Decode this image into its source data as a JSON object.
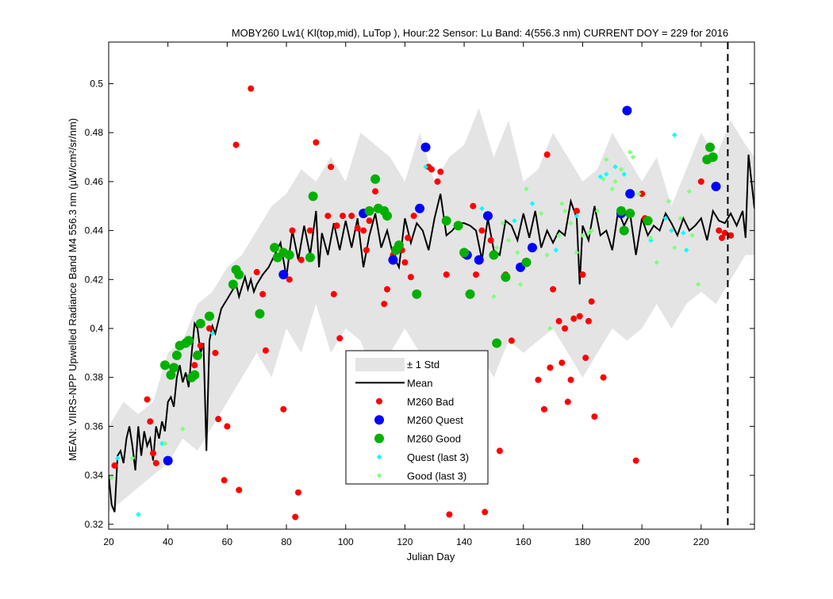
{
  "chart_data": {
    "type": "scatter",
    "title": "MOBY260   Lw1( Kl(top,mid), LuTop ),   Hour:22 Sensor: Lu Band: 4(556.3 nm)   CURRENT DOY = 229 for 2016",
    "xlabel": "Julian Day",
    "ylabel": "MEAN: VIIRS-NPP Upwelled Radiance Band M4 556.3 nm (μW/cm²/sr/nm)",
    "xlim": [
      20,
      238
    ],
    "ylim": [
      0.318,
      0.517
    ],
    "x_ticks": [
      20,
      40,
      60,
      80,
      100,
      120,
      140,
      160,
      180,
      200,
      220
    ],
    "y_ticks": [
      0.32,
      0.34,
      0.36,
      0.38,
      0.4,
      0.42,
      0.44,
      0.46,
      0.48,
      0.5
    ],
    "y_tick_labels": [
      "0.32",
      "0.34",
      "0.36",
      "0.38",
      "0.4",
      "0.42",
      "0.44",
      "0.46",
      "0.48",
      "0.5"
    ],
    "grid": false,
    "legend_position": "center-bottom",
    "current_doy": 229,
    "colors": {
      "std_band": "#e4e4e4",
      "mean": "#000000",
      "bad": "#ff0000",
      "quest": "#0000ff",
      "good": "#00b000",
      "quest_last3": "#00ffff",
      "good_last3": "#80ff80"
    },
    "legend": [
      {
        "key": "std",
        "label": "± 1 Std"
      },
      {
        "key": "mean",
        "label": "Mean"
      },
      {
        "key": "bad",
        "label": "M260 Bad"
      },
      {
        "key": "quest",
        "label": "M260 Quest"
      },
      {
        "key": "good",
        "label": "M260 Good"
      },
      {
        "key": "quest_last3",
        "label": "Quest (last 3)"
      },
      {
        "key": "good_last3",
        "label": "Good (last 3)"
      }
    ],
    "mean_series": {
      "x": [
        20,
        21,
        22,
        23,
        24,
        25,
        26,
        27,
        28,
        29,
        30,
        31,
        32,
        33,
        34,
        35,
        36,
        37,
        38,
        39,
        40,
        41,
        42,
        43,
        44,
        45,
        46,
        47,
        48,
        49,
        50,
        51,
        52,
        53,
        54,
        55,
        56,
        57,
        58,
        59,
        60,
        61,
        62,
        63,
        64,
        65,
        66,
        67,
        68,
        69,
        70,
        72,
        74,
        76,
        78,
        80,
        82,
        84,
        86,
        88,
        90,
        91,
        92,
        94,
        96,
        98,
        100,
        102,
        104,
        106,
        108,
        110,
        112,
        114,
        116,
        118,
        120,
        122,
        124,
        126,
        128,
        130,
        132,
        134,
        136,
        138,
        140,
        142,
        144,
        146,
        148,
        150,
        152,
        154,
        156,
        158,
        160,
        162,
        164,
        166,
        168,
        170,
        172,
        174,
        176,
        178,
        179,
        180,
        182,
        184,
        186,
        188,
        190,
        192,
        194,
        196,
        198,
        200,
        202,
        204,
        206,
        208,
        210,
        212,
        214,
        216,
        218,
        220,
        222,
        224,
        226,
        228,
        230,
        232,
        234,
        235,
        236,
        238
      ],
      "y": [
        0.34,
        0.328,
        0.325,
        0.348,
        0.35,
        0.345,
        0.355,
        0.36,
        0.352,
        0.342,
        0.36,
        0.348,
        0.358,
        0.352,
        0.355,
        0.346,
        0.36,
        0.355,
        0.362,
        0.358,
        0.37,
        0.372,
        0.368,
        0.38,
        0.385,
        0.378,
        0.382,
        0.376,
        0.39,
        0.402,
        0.4,
        0.39,
        0.394,
        0.35,
        0.395,
        0.401,
        0.398,
        0.403,
        0.408,
        0.41,
        0.412,
        0.414,
        0.416,
        0.418,
        0.413,
        0.417,
        0.421,
        0.416,
        0.42,
        0.415,
        0.418,
        0.422,
        0.425,
        0.43,
        0.435,
        0.421,
        0.44,
        0.428,
        0.442,
        0.43,
        0.448,
        0.425,
        0.439,
        0.43,
        0.443,
        0.432,
        0.444,
        0.433,
        0.445,
        0.425,
        0.438,
        0.447,
        0.433,
        0.44,
        0.43,
        0.425,
        0.445,
        0.435,
        0.443,
        0.44,
        0.432,
        0.445,
        0.455,
        0.438,
        0.44,
        0.443,
        0.443,
        0.442,
        0.44,
        0.428,
        0.445,
        0.432,
        0.43,
        0.444,
        0.442,
        0.436,
        0.447,
        0.437,
        0.448,
        0.433,
        0.44,
        0.435,
        0.44,
        0.438,
        0.452,
        0.445,
        0.418,
        0.442,
        0.436,
        0.45,
        0.438,
        0.44,
        0.432,
        0.448,
        0.442,
        0.447,
        0.43,
        0.445,
        0.438,
        0.442,
        0.44,
        0.447,
        0.443,
        0.438,
        0.445,
        0.44,
        0.442,
        0.445,
        0.436,
        0.448,
        0.444,
        0.443,
        0.447,
        0.442,
        0.448,
        0.437,
        0.471,
        0.449
      ],
      "y_std": [
        0.012,
        0.012,
        0.012,
        0.012,
        0.012,
        0.012,
        0.012,
        0.012,
        0.012,
        0.012,
        0.012,
        0.012,
        0.012,
        0.012,
        0.012,
        0.012,
        0.012,
        0.012,
        0.012,
        0.012,
        0.012,
        0.012,
        0.012,
        0.012,
        0.012,
        0.012,
        0.012,
        0.012,
        0.012,
        0.012,
        0.012,
        0.012,
        0.012,
        0.012,
        0.012,
        0.012,
        0.012,
        0.012,
        0.012,
        0.012,
        0.012,
        0.012,
        0.012,
        0.012,
        0.012,
        0.012,
        0.012,
        0.012,
        0.012,
        0.012,
        0.012,
        0.012,
        0.012,
        0.012,
        0.012,
        0.012,
        0.012,
        0.012,
        0.012,
        0.012,
        0.012,
        0.012,
        0.012,
        0.012,
        0.012,
        0.012,
        0.012,
        0.012,
        0.012,
        0.012,
        0.012,
        0.012,
        0.012,
        0.012,
        0.012,
        0.012,
        0.012,
        0.012,
        0.012,
        0.012,
        0.012,
        0.012,
        0.012,
        0.012,
        0.012,
        0.012,
        0.012,
        0.012,
        0.012,
        0.012,
        0.012,
        0.012,
        0.012,
        0.012,
        0.012,
        0.012,
        0.012,
        0.012,
        0.012,
        0.012,
        0.012,
        0.012,
        0.012,
        0.012,
        0.012,
        0.012,
        0.012,
        0.012,
        0.012,
        0.012,
        0.012,
        0.012,
        0.012,
        0.012,
        0.012,
        0.012,
        0.012,
        0.012,
        0.012,
        0.012,
        0.012,
        0.012,
        0.012,
        0.012,
        0.012,
        0.012,
        0.012,
        0.012,
        0.012,
        0.012,
        0.012,
        0.012,
        0.012,
        0.012,
        0.012,
        0.012,
        0.012,
        0.012
      ]
    },
    "std_band": {
      "x": [
        20,
        25,
        30,
        35,
        40,
        45,
        50,
        55,
        60,
        65,
        70,
        75,
        80,
        85,
        90,
        95,
        100,
        105,
        110,
        115,
        120,
        125,
        130,
        135,
        140,
        145,
        150,
        155,
        160,
        165,
        170,
        175,
        180,
        185,
        190,
        195,
        200,
        205,
        210,
        215,
        220,
        225,
        230,
        235,
        238
      ],
      "upper": [
        0.36,
        0.37,
        0.365,
        0.37,
        0.39,
        0.395,
        0.41,
        0.415,
        0.425,
        0.43,
        0.44,
        0.45,
        0.455,
        0.465,
        0.46,
        0.47,
        0.46,
        0.48,
        0.475,
        0.47,
        0.46,
        0.48,
        0.46,
        0.47,
        0.475,
        0.49,
        0.47,
        0.485,
        0.46,
        0.465,
        0.48,
        0.47,
        0.46,
        0.465,
        0.48,
        0.47,
        0.46,
        0.47,
        0.45,
        0.465,
        0.48,
        0.47,
        0.485,
        0.475,
        0.47
      ],
      "lower": [
        0.325,
        0.33,
        0.335,
        0.34,
        0.345,
        0.355,
        0.35,
        0.36,
        0.37,
        0.38,
        0.39,
        0.38,
        0.4,
        0.39,
        0.41,
        0.39,
        0.4,
        0.395,
        0.38,
        0.39,
        0.4,
        0.39,
        0.38,
        0.39,
        0.385,
        0.39,
        0.38,
        0.395,
        0.39,
        0.395,
        0.4,
        0.39,
        0.38,
        0.39,
        0.4,
        0.395,
        0.4,
        0.41,
        0.4,
        0.41,
        0.415,
        0.41,
        0.42,
        0.43,
        0.43
      ]
    },
    "bad_points": [
      [
        22,
        0.344
      ],
      [
        33,
        0.371
      ],
      [
        34,
        0.362
      ],
      [
        35,
        0.349
      ],
      [
        36,
        0.345
      ],
      [
        49,
        0.385
      ],
      [
        51,
        0.393
      ],
      [
        54,
        0.4
      ],
      [
        56,
        0.39
      ],
      [
        57,
        0.363
      ],
      [
        59,
        0.338
      ],
      [
        60,
        0.36
      ],
      [
        63,
        0.475
      ],
      [
        64,
        0.334
      ],
      [
        68,
        0.498
      ],
      [
        70,
        0.423
      ],
      [
        72,
        0.414
      ],
      [
        73,
        0.391
      ],
      [
        79,
        0.367
      ],
      [
        81,
        0.42
      ],
      [
        82,
        0.44
      ],
      [
        83,
        0.323
      ],
      [
        84,
        0.333
      ],
      [
        85,
        0.428
      ],
      [
        88,
        0.44
      ],
      [
        90,
        0.476
      ],
      [
        94,
        0.446
      ],
      [
        95,
        0.466
      ],
      [
        96,
        0.414
      ],
      [
        97,
        0.442
      ],
      [
        98,
        0.396
      ],
      [
        99,
        0.446
      ],
      [
        102,
        0.446
      ],
      [
        104,
        0.441
      ],
      [
        106,
        0.44
      ],
      [
        107,
        0.432
      ],
      [
        108,
        0.444
      ],
      [
        110,
        0.456
      ],
      [
        113,
        0.41
      ],
      [
        114,
        0.416
      ],
      [
        116,
        0.43
      ],
      [
        119,
        0.432
      ],
      [
        120,
        0.427
      ],
      [
        121,
        0.437
      ],
      [
        122,
        0.421
      ],
      [
        123,
        0.446
      ],
      [
        128,
        0.466
      ],
      [
        129,
        0.465
      ],
      [
        131,
        0.46
      ],
      [
        132,
        0.464
      ],
      [
        134,
        0.422
      ],
      [
        135,
        0.324
      ],
      [
        140,
        0.43
      ],
      [
        143,
        0.45
      ],
      [
        144,
        0.422
      ],
      [
        146,
        0.44
      ],
      [
        147,
        0.325
      ],
      [
        149,
        0.436
      ],
      [
        152,
        0.35
      ],
      [
        154,
        0.422
      ],
      [
        156,
        0.395
      ],
      [
        165,
        0.379
      ],
      [
        167,
        0.367
      ],
      [
        168,
        0.471
      ],
      [
        169,
        0.384
      ],
      [
        170,
        0.416
      ],
      [
        172,
        0.403
      ],
      [
        173,
        0.386
      ],
      [
        174,
        0.4
      ],
      [
        175,
        0.37
      ],
      [
        176,
        0.379
      ],
      [
        177,
        0.404
      ],
      [
        178,
        0.448
      ],
      [
        179,
        0.405
      ],
      [
        180,
        0.422
      ],
      [
        181,
        0.388
      ],
      [
        182,
        0.403
      ],
      [
        183,
        0.411
      ],
      [
        184,
        0.364
      ],
      [
        187,
        0.38
      ],
      [
        198,
        0.346
      ],
      [
        200,
        0.455
      ],
      [
        201,
        0.445
      ],
      [
        220,
        0.46
      ],
      [
        226,
        0.44
      ],
      [
        227,
        0.437
      ],
      [
        228,
        0.439
      ],
      [
        230,
        0.438
      ]
    ],
    "quest_points": [
      [
        40,
        0.346
      ],
      [
        79,
        0.422
      ],
      [
        106,
        0.447
      ],
      [
        116,
        0.428
      ],
      [
        125,
        0.449
      ],
      [
        127,
        0.474
      ],
      [
        141,
        0.43
      ],
      [
        145,
        0.428
      ],
      [
        148,
        0.446
      ],
      [
        159,
        0.425
      ],
      [
        163,
        0.433
      ],
      [
        193,
        0.447
      ],
      [
        195,
        0.489
      ],
      [
        196,
        0.455
      ],
      [
        225,
        0.458
      ]
    ],
    "good_points": [
      [
        39,
        0.385
      ],
      [
        41,
        0.381
      ],
      [
        42,
        0.384
      ],
      [
        43,
        0.389
      ],
      [
        44,
        0.393
      ],
      [
        46,
        0.394
      ],
      [
        47,
        0.395
      ],
      [
        48,
        0.38
      ],
      [
        49,
        0.381
      ],
      [
        50,
        0.389
      ],
      [
        51,
        0.402
      ],
      [
        54,
        0.405
      ],
      [
        62,
        0.418
      ],
      [
        63,
        0.424
      ],
      [
        64,
        0.422
      ],
      [
        71,
        0.406
      ],
      [
        76,
        0.433
      ],
      [
        77,
        0.429
      ],
      [
        79,
        0.431
      ],
      [
        81,
        0.43
      ],
      [
        88,
        0.429
      ],
      [
        89,
        0.454
      ],
      [
        108,
        0.448
      ],
      [
        110,
        0.461
      ],
      [
        111,
        0.449
      ],
      [
        113,
        0.448
      ],
      [
        114,
        0.446
      ],
      [
        117,
        0.432
      ],
      [
        118,
        0.434
      ],
      [
        124,
        0.414
      ],
      [
        134,
        0.444
      ],
      [
        138,
        0.442
      ],
      [
        140,
        0.431
      ],
      [
        142,
        0.414
      ],
      [
        150,
        0.43
      ],
      [
        151,
        0.394
      ],
      [
        154,
        0.421
      ],
      [
        161,
        0.427
      ],
      [
        193,
        0.448
      ],
      [
        194,
        0.44
      ],
      [
        196,
        0.447
      ],
      [
        202,
        0.444
      ],
      [
        222,
        0.469
      ],
      [
        223,
        0.474
      ],
      [
        224,
        0.47
      ]
    ],
    "quest_last3_points": [
      [
        23,
        0.347
      ],
      [
        30,
        0.324
      ],
      [
        38,
        0.353
      ],
      [
        55,
        0.398
      ],
      [
        127,
        0.466
      ],
      [
        146,
        0.449
      ],
      [
        157,
        0.444
      ],
      [
        163,
        0.451
      ],
      [
        171,
        0.432
      ],
      [
        178,
        0.446
      ],
      [
        186,
        0.462
      ],
      [
        188,
        0.463
      ],
      [
        191,
        0.466
      ],
      [
        194,
        0.463
      ],
      [
        203,
        0.436
      ],
      [
        208,
        0.445
      ],
      [
        210,
        0.44
      ],
      [
        211,
        0.479
      ],
      [
        214,
        0.439
      ],
      [
        215,
        0.432
      ]
    ],
    "good_last3_points": [
      [
        21,
        0.339
      ],
      [
        28,
        0.347
      ],
      [
        39,
        0.353
      ],
      [
        45,
        0.359
      ],
      [
        150,
        0.413
      ],
      [
        151,
        0.433
      ],
      [
        153,
        0.443
      ],
      [
        155,
        0.436
      ],
      [
        158,
        0.431
      ],
      [
        159,
        0.418
      ],
      [
        161,
        0.457
      ],
      [
        166,
        0.447
      ],
      [
        168,
        0.43
      ],
      [
        169,
        0.4
      ],
      [
        172,
        0.438
      ],
      [
        173,
        0.451
      ],
      [
        174,
        0.448
      ],
      [
        176,
        0.443
      ],
      [
        178,
        0.431
      ],
      [
        180,
        0.438
      ],
      [
        182,
        0.439
      ],
      [
        183,
        0.44
      ],
      [
        185,
        0.448
      ],
      [
        187,
        0.461
      ],
      [
        188,
        0.469
      ],
      [
        190,
        0.457
      ],
      [
        191,
        0.46
      ],
      [
        193,
        0.465
      ],
      [
        196,
        0.472
      ],
      [
        197,
        0.47
      ],
      [
        199,
        0.455
      ],
      [
        203,
        0.437
      ],
      [
        205,
        0.427
      ],
      [
        209,
        0.452
      ],
      [
        211,
        0.433
      ],
      [
        213,
        0.445
      ],
      [
        216,
        0.456
      ],
      [
        217,
        0.438
      ],
      [
        219,
        0.418
      ]
    ]
  }
}
